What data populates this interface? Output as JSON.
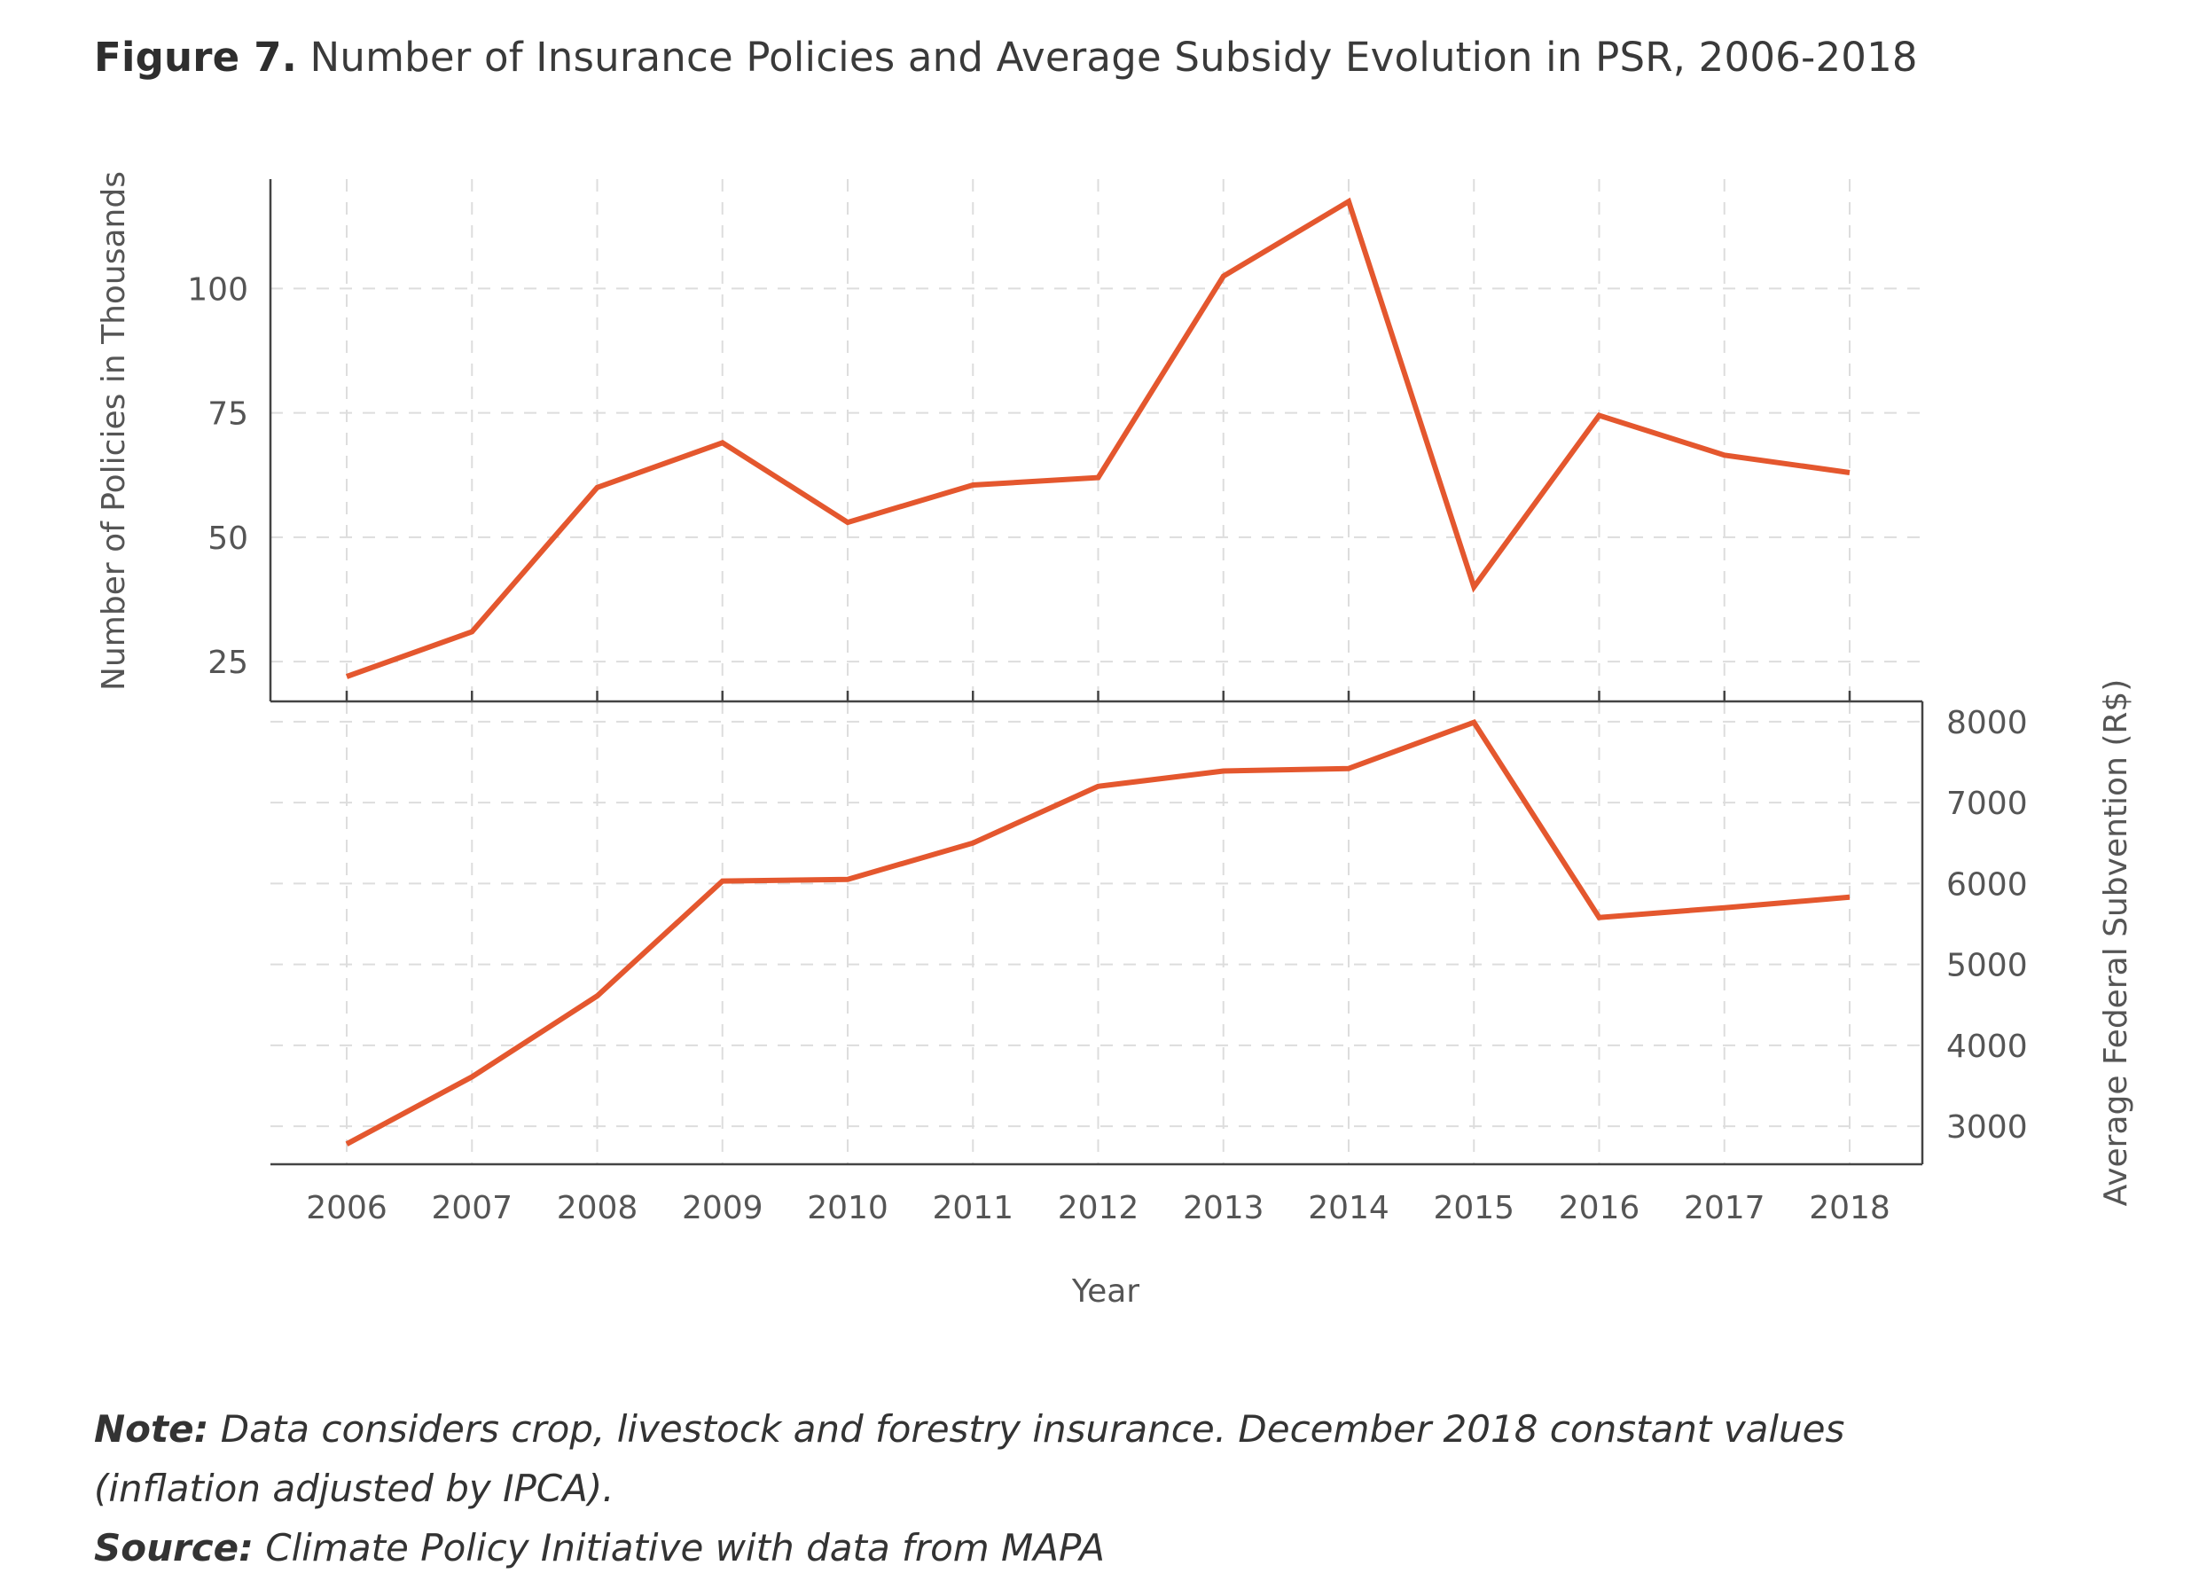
{
  "figure": {
    "label": "Figure 7.",
    "title": "Number of Insurance Policies and Average Subsidy Evolution in PSR, 2006-2018"
  },
  "notes": {
    "note_label": "Note:",
    "note_text": "Data considers crop, livestock and forestry insurance. December 2018 constant values",
    "note_text_2": "(inflation adjusted by IPCA).",
    "source_label": "Source:",
    "source_text": "Climate Policy Initiative with data from MAPA"
  },
  "colors": {
    "line": "#e4572e",
    "grid": "#dddddd",
    "axis": "#444444"
  },
  "chart_data": [
    {
      "type": "line",
      "x": [
        "2006",
        "2007",
        "2008",
        "2009",
        "2010",
        "2011",
        "2012",
        "2013",
        "2014",
        "2015",
        "2016",
        "2017",
        "2018"
      ],
      "xlabel": "",
      "ylabel": "Number of Policies in Thousands",
      "yticks": [
        "25",
        "50",
        "75",
        "100"
      ],
      "ylim": [
        17,
        122
      ],
      "series": [
        {
          "values": [
            22,
            31,
            60,
            69,
            53,
            60.5,
            62,
            102.5,
            117.5,
            40,
            74.5,
            66.5,
            63
          ]
        }
      ],
      "grid": true
    },
    {
      "type": "line",
      "x": [
        "2006",
        "2007",
        "2008",
        "2009",
        "2010",
        "2011",
        "2012",
        "2013",
        "2014",
        "2015",
        "2016",
        "2017",
        "2018"
      ],
      "xlabel": "Year",
      "ylabel": "Average Federal Subvention (R$)",
      "yticks": [
        "3000",
        "4000",
        "5000",
        "6000",
        "7000",
        "8000"
      ],
      "ylim": [
        2530,
        8250
      ],
      "y_axis_side": "right",
      "series": [
        {
          "values": [
            2780,
            3610,
            4610,
            6030,
            6050,
            6500,
            7200,
            7390,
            7420,
            7990,
            5580,
            5700,
            5830
          ]
        }
      ],
      "grid": true
    }
  ]
}
